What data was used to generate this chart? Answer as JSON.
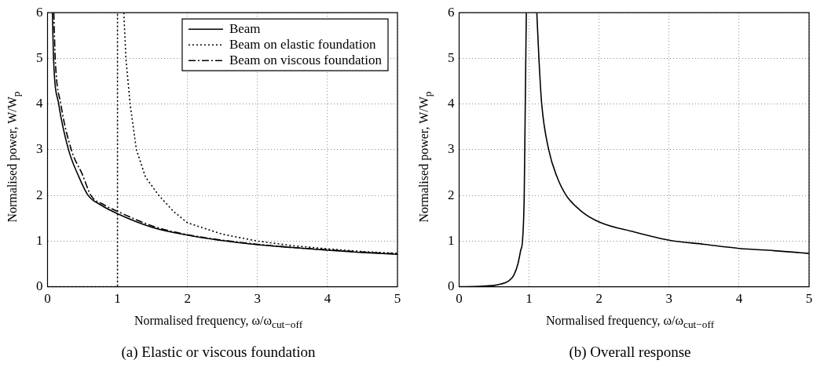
{
  "chart_data": [
    {
      "type": "line",
      "title": "(a) Elastic or viscous foundation",
      "xlabel": "Normalised frequency, ω/ω$_{cut−off}$",
      "ylabel": "Normalised power, W/W$_{p}$",
      "xlim": [
        0,
        5
      ],
      "ylim": [
        0,
        6
      ],
      "xticks": [
        0,
        1,
        2,
        3,
        4,
        5
      ],
      "yticks": [
        0,
        1,
        2,
        3,
        4,
        5,
        6
      ],
      "grid": true,
      "legend": "top right",
      "marker": "none",
      "series": [
        {
          "name": "Beam",
          "color": "#000000",
          "line_style": "solid",
          "x": [
            0.07,
            0.086,
            0.16,
            0.3,
            0.45,
            0.58,
            0.75,
            1,
            1.5,
            2,
            2.5,
            3,
            3.5,
            4,
            4.5,
            5
          ],
          "values": [
            6,
            5,
            4,
            3,
            2.4,
            2,
            1.8,
            1.6,
            1.3,
            1.13,
            1.01,
            0.92,
            0.86,
            0.8,
            0.75,
            0.71
          ]
        },
        {
          "name": "Beam on elastic foundation",
          "color": "#000000",
          "line_style": "dotted",
          "x": [
            0,
            1,
            1,
            1.05,
            1.09,
            1.12,
            1.18,
            1.27,
            1.4,
            1.59,
            1.8,
            2,
            2.5,
            3,
            3.5,
            4,
            4.5,
            5
          ],
          "values": [
            0,
            0,
            6,
            null,
            6,
            5,
            4,
            3,
            2.4,
            2,
            1.65,
            1.4,
            1.15,
            1,
            0.9,
            0.83,
            0.77,
            0.73
          ]
        },
        {
          "name": "Beam on viscous foundation",
          "color": "#000000",
          "line_style": "dashdot",
          "x": [
            0.09,
            0.11,
            0.19,
            0.34,
            0.5,
            0.62,
            0.8,
            1,
            1.5,
            2,
            2.5,
            3,
            3.5,
            4,
            4.5,
            5
          ],
          "values": [
            6,
            5,
            4,
            3,
            2.45,
            2,
            1.8,
            1.65,
            1.33,
            1.14,
            1.02,
            0.93,
            0.86,
            0.81,
            0.76,
            0.72
          ]
        }
      ]
    },
    {
      "type": "line",
      "title": "(b) Overall response",
      "xlabel": "Normalised frequency, ω/ω$_{cut−off}$",
      "ylabel": "Normalised power, W/W$_{p}$",
      "xlim": [
        0,
        5
      ],
      "ylim": [
        0,
        6
      ],
      "xticks": [
        0,
        1,
        2,
        3,
        4,
        5
      ],
      "yticks": [
        0,
        1,
        2,
        3,
        4,
        5,
        6
      ],
      "grid": true,
      "legend": false,
      "marker": "none",
      "series": [
        {
          "color": "#000000",
          "line_style": "solid",
          "x": [
            0,
            0.3,
            0.5,
            0.6,
            0.7,
            0.78,
            0.84,
            0.88,
            0.905,
            0.93,
            0.945,
            0.96,
            1.03,
            1.11,
            1.14,
            1.18,
            1.28,
            1.4,
            1.53,
            1.75,
            2,
            2.5,
            3,
            3.5,
            4,
            4.5,
            5
          ],
          "values": [
            0,
            0.01,
            0.03,
            0.06,
            0.12,
            0.25,
            0.5,
            0.8,
            1,
            2,
            4,
            6,
            null,
            6,
            5,
            4,
            3,
            2.4,
            2,
            1.65,
            1.42,
            1.2,
            1.02,
            0.93,
            0.84,
            0.79,
            0.73
          ]
        }
      ]
    }
  ]
}
